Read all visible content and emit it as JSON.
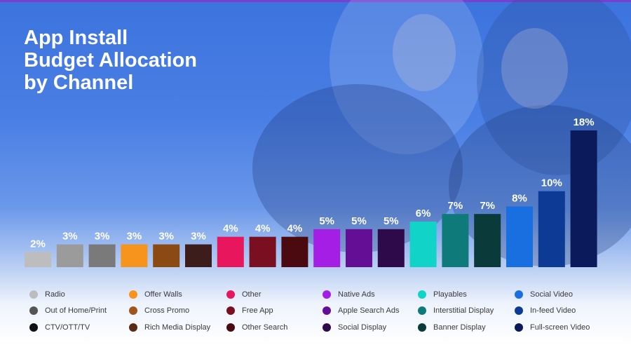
{
  "chart_data": {
    "type": "bar",
    "title": "App Install Budget Allocation by Channel",
    "title_lines": [
      "App Install",
      "Budget Allocation",
      "by Channel"
    ],
    "xlabel": "",
    "ylabel": "",
    "ylim": [
      0,
      18
    ],
    "grid": false,
    "legend_placement": "bottom",
    "categories": [
      "Radio",
      "Out of Home/Print",
      "CTV/OTT/TV",
      "Offer Walls",
      "Cross Promo",
      "Rich Media Display",
      "Other",
      "Free App",
      "Other Search",
      "Native Ads",
      "Apple Search Ads",
      "Social Display",
      "Playables",
      "Interstitial Display",
      "Banner Display",
      "Social Video",
      "In-feed Video",
      "Full-screen Video"
    ],
    "values": [
      2,
      3,
      3,
      3,
      3,
      3,
      4,
      4,
      4,
      5,
      5,
      5,
      6,
      7,
      7,
      8,
      10,
      18
    ],
    "value_labels": [
      "2%",
      "3%",
      "3%",
      "3%",
      "3%",
      "3%",
      "4%",
      "4%",
      "4%",
      "5%",
      "5%",
      "5%",
      "6%",
      "7%",
      "7%",
      "8%",
      "10%",
      "18%"
    ],
    "colors": [
      "#bdbdbd",
      "#9b9b9b",
      "#7a7a7a",
      "#f7941d",
      "#8b4a14",
      "#3d1c1c",
      "#e8175d",
      "#7a0f22",
      "#4a0a10",
      "#a51ee6",
      "#640e96",
      "#2e0a4a",
      "#12d3c7",
      "#0e7a7a",
      "#0a3a3a",
      "#1a6fe0",
      "#0d3a94",
      "#0a1a5a"
    ],
    "legend_colors": [
      "#bdbdbd",
      "#555555",
      "#111111",
      "#f7941d",
      "#a0561a",
      "#5a2a12",
      "#e8175d",
      "#7a0f22",
      "#4a0a10",
      "#a51ee6",
      "#640e96",
      "#2e0a4a",
      "#12d3c7",
      "#0e7a7a",
      "#0a3a3a",
      "#1a6fe0",
      "#0d3a94",
      "#0a1a5a"
    ]
  }
}
